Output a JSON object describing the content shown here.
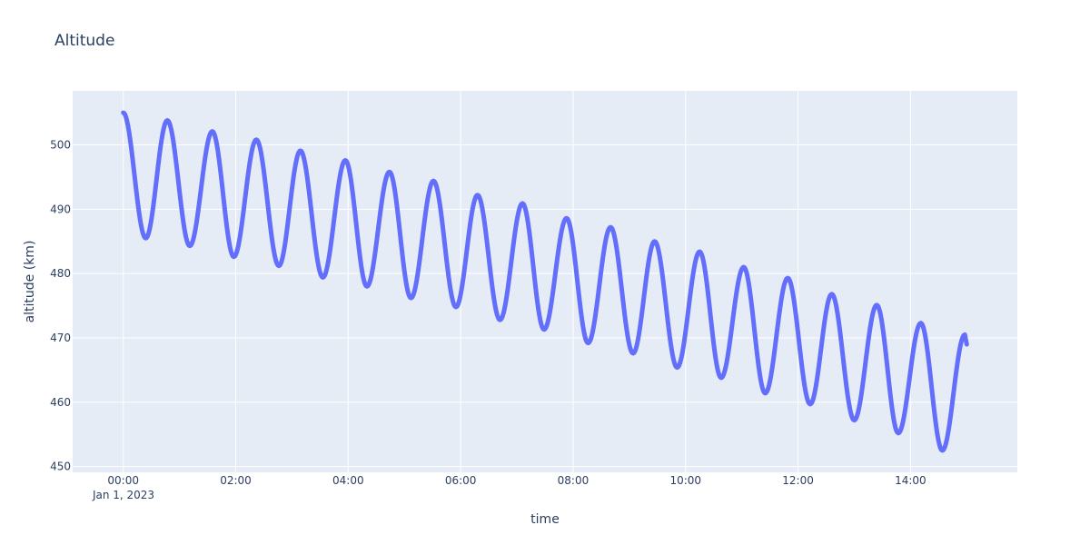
{
  "colors": {
    "plot_background": "#e5ecf6",
    "grid": "#ffffff",
    "line": "#636efa",
    "text": "#2a3f5f"
  },
  "chart_data": {
    "type": "line",
    "title": "Altitude",
    "xlabel": "time",
    "ylabel": "altitude (km)",
    "x_axis_type": "date",
    "x_tick_labels": [
      "00:00",
      "02:00",
      "04:00",
      "06:00",
      "08:00",
      "10:00",
      "12:00",
      "14:00"
    ],
    "x_date_label": "Jan 1, 2023",
    "x_range": [
      "2022-12-31T23:06:00",
      "2023-01-01T15:54:00"
    ],
    "y_tick_labels": [
      "450",
      "460",
      "470",
      "480",
      "490",
      "500"
    ],
    "y_range": [
      449.1,
      508.4
    ],
    "grid": true,
    "series": [
      {
        "x_start": "2023-01-01T00:00:00",
        "x_end": "2023-01-01T15:00:00",
        "x_step_minutes": 1,
        "extrema": [
          {
            "x": "2023-01-01T00:00:00",
            "y": 505.0
          },
          {
            "x": "2023-01-01T00:24:00",
            "y": 485.5
          },
          {
            "x": "2023-01-01T00:47:00",
            "y": 503.8
          },
          {
            "x": "2023-01-01T01:11:00",
            "y": 484.3
          },
          {
            "x": "2023-01-01T01:35:00",
            "y": 502.1
          },
          {
            "x": "2023-01-01T01:58:00",
            "y": 482.6
          },
          {
            "x": "2023-01-01T02:22:00",
            "y": 500.8
          },
          {
            "x": "2023-01-01T02:46:00",
            "y": 481.2
          },
          {
            "x": "2023-01-01T03:09:00",
            "y": 499.1
          },
          {
            "x": "2023-01-01T03:33:00",
            "y": 479.4
          },
          {
            "x": "2023-01-01T03:57:00",
            "y": 497.6
          },
          {
            "x": "2023-01-01T04:20:00",
            "y": 478.0
          },
          {
            "x": "2023-01-01T04:44:00",
            "y": 495.8
          },
          {
            "x": "2023-01-01T05:07:00",
            "y": 476.2
          },
          {
            "x": "2023-01-01T05:31:00",
            "y": 494.4
          },
          {
            "x": "2023-01-01T05:55:00",
            "y": 474.8
          },
          {
            "x": "2023-01-01T06:18:00",
            "y": 492.2
          },
          {
            "x": "2023-01-01T06:42:00",
            "y": 472.8
          },
          {
            "x": "2023-01-01T07:06:00",
            "y": 490.9
          },
          {
            "x": "2023-01-01T07:29:00",
            "y": 471.3
          },
          {
            "x": "2023-01-01T07:53:00",
            "y": 488.6
          },
          {
            "x": "2023-01-01T08:16:00",
            "y": 469.2
          },
          {
            "x": "2023-01-01T08:40:00",
            "y": 487.2
          },
          {
            "x": "2023-01-01T09:04:00",
            "y": 467.6
          },
          {
            "x": "2023-01-01T09:27:00",
            "y": 485.0
          },
          {
            "x": "2023-01-01T09:51:00",
            "y": 465.4
          },
          {
            "x": "2023-01-01T10:15:00",
            "y": 483.4
          },
          {
            "x": "2023-01-01T10:38:00",
            "y": 463.8
          },
          {
            "x": "2023-01-01T11:02:00",
            "y": 481.0
          },
          {
            "x": "2023-01-01T11:25:00",
            "y": 461.4
          },
          {
            "x": "2023-01-01T11:49:00",
            "y": 479.3
          },
          {
            "x": "2023-01-01T12:13:00",
            "y": 459.7
          },
          {
            "x": "2023-01-01T12:36:00",
            "y": 476.8
          },
          {
            "x": "2023-01-01T13:00:00",
            "y": 457.2
          },
          {
            "x": "2023-01-01T13:24:00",
            "y": 475.1
          },
          {
            "x": "2023-01-01T13:47:00",
            "y": 455.2
          },
          {
            "x": "2023-01-01T14:11:00",
            "y": 472.3
          },
          {
            "x": "2023-01-01T14:34:00",
            "y": 452.5
          },
          {
            "x": "2023-01-01T14:58:00",
            "y": 470.5
          },
          {
            "x": "2023-01-01T15:00:00",
            "y": 469.0
          }
        ]
      }
    ]
  }
}
